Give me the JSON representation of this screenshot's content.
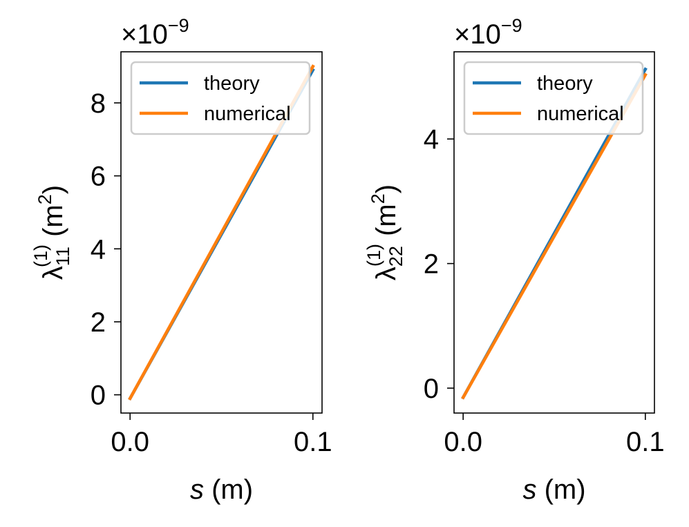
{
  "chart_data": [
    {
      "type": "line",
      "xlabel": "s (m)",
      "xlabel_var": "s",
      "xlabel_unit": " (m)",
      "ylabel": "λ11(1) (m2)",
      "ylabel_symbol": "λ",
      "ylabel_sub": "11",
      "ylabel_sup": "(1)",
      "ylabel_unit_open": " (m",
      "ylabel_unit_sup": "2",
      "ylabel_unit_close": ")",
      "offset_text": "×10",
      "offset_exp": "−9",
      "xlim": [
        -0.005,
        0.105
      ],
      "ylim": [
        -0.5,
        9.4
      ],
      "xticks": [
        0.0,
        0.1
      ],
      "xtick_labels": [
        "0.0",
        "0.1"
      ],
      "yticks": [
        0,
        2,
        4,
        6,
        8
      ],
      "ytick_labels": [
        "0",
        "2",
        "4",
        "6",
        "8"
      ],
      "legend_position": "upper-left",
      "series": [
        {
          "name": "theory",
          "color": "#1f77b4",
          "x": [
            0.0,
            0.1
          ],
          "y": [
            -0.1,
            8.9
          ]
        },
        {
          "name": "numerical",
          "color": "#ff7f0e",
          "x": [
            0.0,
            0.1
          ],
          "y": [
            -0.1,
            9.0
          ]
        }
      ]
    },
    {
      "type": "line",
      "xlabel": "s (m)",
      "xlabel_var": "s",
      "xlabel_unit": " (m)",
      "ylabel": "λ22(1) (m2)",
      "ylabel_symbol": "λ",
      "ylabel_sub": "22",
      "ylabel_sup": "(1)",
      "ylabel_unit_open": " (m",
      "ylabel_unit_sup": "2",
      "ylabel_unit_close": ")",
      "offset_text": "×10",
      "offset_exp": "−9",
      "xlim": [
        -0.005,
        0.105
      ],
      "ylim": [
        -0.4,
        5.4
      ],
      "xticks": [
        0.0,
        0.1
      ],
      "xtick_labels": [
        "0.0",
        "0.1"
      ],
      "yticks": [
        0,
        2,
        4
      ],
      "ytick_labels": [
        "0",
        "2",
        "4"
      ],
      "legend_position": "upper-left",
      "series": [
        {
          "name": "theory",
          "color": "#1f77b4",
          "x": [
            0.0,
            0.1
          ],
          "y": [
            -0.15,
            5.12
          ]
        },
        {
          "name": "numerical",
          "color": "#ff7f0e",
          "x": [
            0.0,
            0.1
          ],
          "y": [
            -0.15,
            5.03
          ]
        }
      ]
    }
  ]
}
